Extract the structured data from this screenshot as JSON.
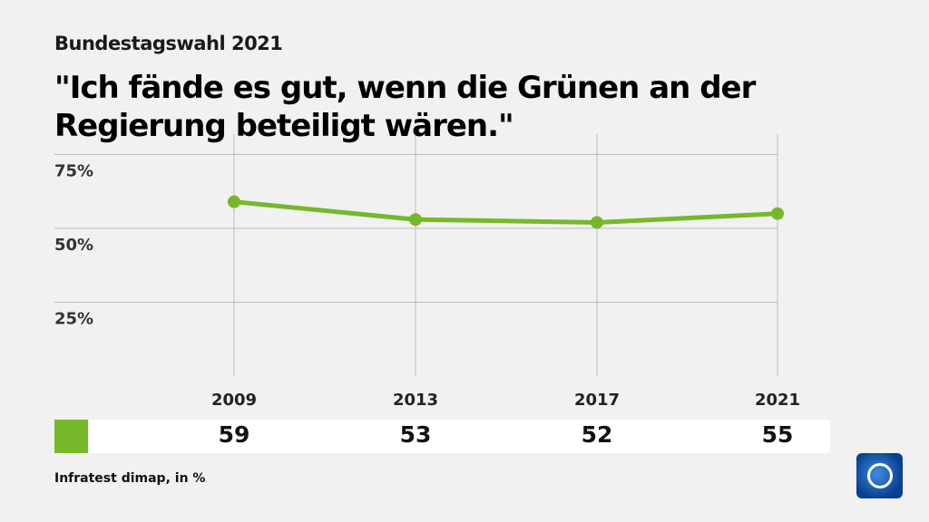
{
  "header": {
    "subtitle": "Bundestagswahl 2021",
    "title": "\"Ich fände es gut, wenn die Grünen an der Regierung beteiligt wären.\""
  },
  "chart_data": {
    "type": "line",
    "categories": [
      "2009",
      "2013",
      "2017",
      "2021"
    ],
    "series": [
      {
        "values": [
          59,
          53,
          52,
          55
        ],
        "color": "#76b82a"
      }
    ],
    "yticks": [
      {
        "value": 25,
        "label": "25%"
      },
      {
        "value": 50,
        "label": "50%"
      },
      {
        "value": 75,
        "label": "75%"
      }
    ],
    "ylim": [
      0,
      82
    ],
    "grid": true,
    "value_labels": [
      "59",
      "53",
      "52",
      "55"
    ]
  },
  "footer": {
    "source": "Infratest dimap, in %"
  },
  "logo": {
    "name": "tagesschau-logo"
  }
}
